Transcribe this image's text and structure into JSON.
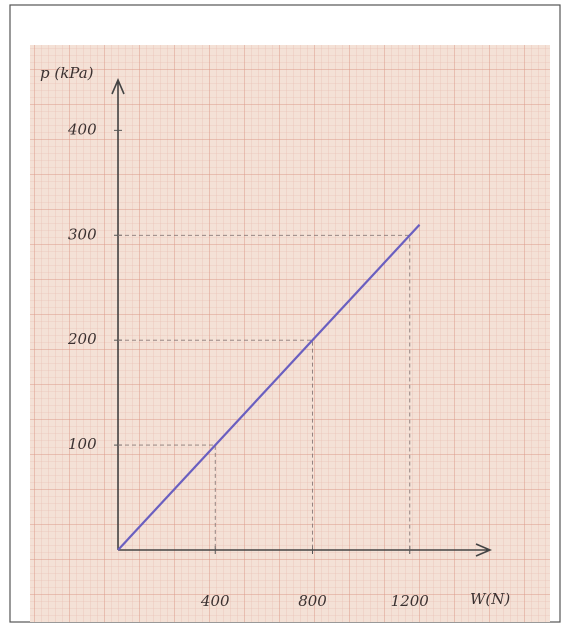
{
  "chart_data": {
    "type": "line",
    "x_label": "W(N)",
    "y_label": "p (kPa)",
    "x": [
      0,
      400,
      800,
      1200,
      1240
    ],
    "series": [
      {
        "color": "#6a5fc0",
        "values": [
          0,
          100,
          200,
          300,
          310
        ]
      }
    ],
    "xlim": [
      0,
      1530
    ],
    "ylim": [
      0,
      448
    ],
    "xticks": [
      400,
      800,
      1200
    ],
    "yticks": [
      100,
      200,
      300,
      400
    ],
    "grid": true
  }
}
